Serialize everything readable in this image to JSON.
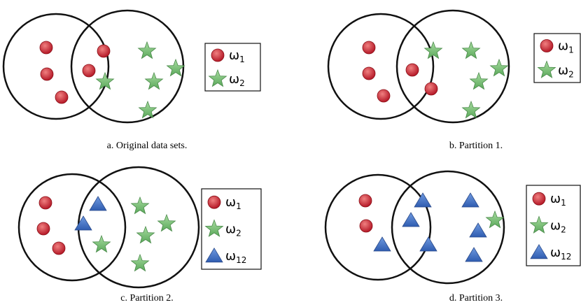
{
  "panels": [
    {
      "caption": "a. Original data sets.",
      "legend": [
        {
          "symbol": "ω",
          "sub": "1"
        },
        {
          "symbol": "ω",
          "sub": "2"
        }
      ]
    },
    {
      "caption": "b. Partition 1.",
      "legend": [
        {
          "symbol": "ω",
          "sub": "1"
        },
        {
          "symbol": "ω",
          "sub": "2"
        }
      ]
    },
    {
      "caption": "c. Partition 2.",
      "legend": [
        {
          "symbol": "ω",
          "sub": "1"
        },
        {
          "symbol": "ω",
          "sub": "2"
        },
        {
          "symbol": "ω",
          "sub": "12"
        }
      ]
    },
    {
      "caption": "d. Partition 3.",
      "legend": [
        {
          "symbol": "ω",
          "sub": "1"
        },
        {
          "symbol": "ω",
          "sub": "2"
        },
        {
          "symbol": "ω",
          "sub": "12"
        }
      ]
    }
  ]
}
